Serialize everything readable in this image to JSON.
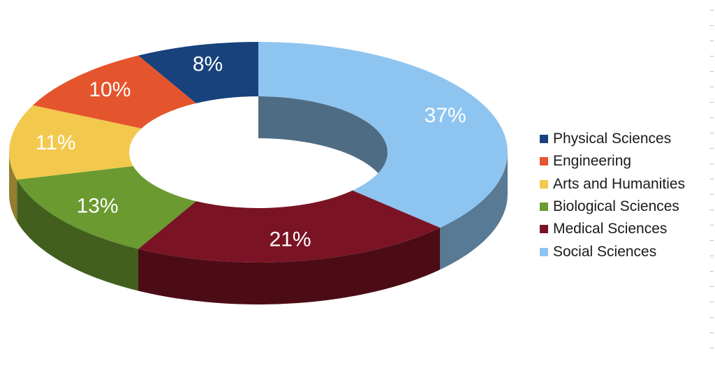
{
  "chart_data": {
    "type": "pie",
    "variant": "3d-donut",
    "title": "",
    "unit": "%",
    "start": "top-center",
    "direction": "clockwise",
    "legend_position": "right",
    "categories": [
      "Social Sciences",
      "Medical Sciences",
      "Biological Sciences",
      "Arts and Humanities",
      "Engineering",
      "Physical Sciences"
    ],
    "values": [
      37,
      21,
      13,
      11,
      10,
      8
    ],
    "labels": [
      "37%",
      "21%",
      "13%",
      "11%",
      "10%",
      "8%"
    ],
    "colors": [
      "#8ec4f0",
      "#7a1424",
      "#6a9a30",
      "#f2c94c",
      "#e5552d",
      "#17427c"
    ],
    "legend_order": [
      "Physical Sciences",
      "Engineering",
      "Arts and Humanities",
      "Biological Sciences",
      "Medical Sciences",
      "Social Sciences"
    ]
  }
}
